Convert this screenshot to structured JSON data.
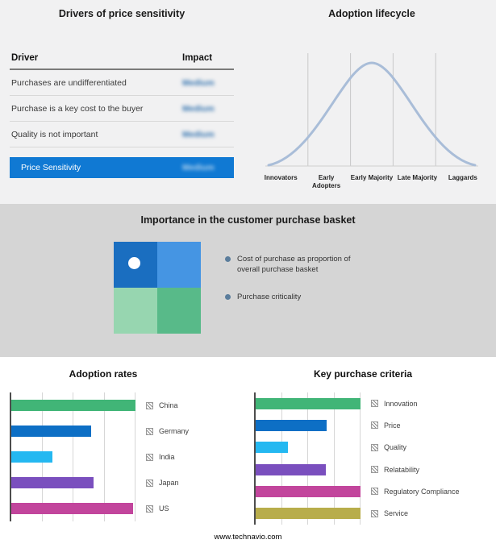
{
  "drivers": {
    "title": "Drivers of price sensitivity",
    "col_driver": "Driver",
    "col_impact": "Impact",
    "rows": [
      {
        "driver": "Purchases are undifferentiated",
        "impact": "Medium"
      },
      {
        "driver": "Purchase is a key cost to the buyer",
        "impact": "Medium"
      },
      {
        "driver": "Quality is not important",
        "impact": "Medium"
      }
    ],
    "highlight": {
      "driver": "Price Sensitivity",
      "impact": "Medium",
      "color": "#1079d3"
    },
    "impact_blurred": true
  },
  "basket": {
    "title": "Importance in the customer purchase basket",
    "legend": [
      "Cost of purchase as proportion of overall purchase basket",
      "Purchase criticality"
    ],
    "quadrant_colors": {
      "top_left": "#1a6ec0",
      "top_right": "#4595e3",
      "bottom_left": "#97d6b0",
      "bottom_right": "#58ba89"
    },
    "band_color": "#d5d5d5"
  },
  "icons": {
    "legend_swatch": "hatched-square",
    "legend_bullet": "filled-circle-bullet",
    "quadrant_marker": "white-dot"
  },
  "footer": {
    "url": "www.technavio.com"
  },
  "chart_data": [
    {
      "type": "line",
      "title": "Adoption lifecycle",
      "x": [
        "Innovators",
        "Early Adopters",
        "Early Majority",
        "Late Majority",
        "Laggards"
      ],
      "values": [
        5,
        45,
        100,
        45,
        5
      ],
      "color": "#a9bdd8",
      "note": "bell-shaped adoption curve, peak over Early Majority, vertical dividers between stages"
    },
    {
      "type": "bar",
      "title": "Adoption rates",
      "orientation": "horizontal",
      "categories": [
        "China",
        "Germany",
        "India",
        "Japan",
        "US"
      ],
      "values": [
        100,
        64,
        33,
        66,
        98
      ],
      "colors": [
        "#41b577",
        "#0d6fc5",
        "#24b8f1",
        "#7a4fbe",
        "#c2459c"
      ],
      "xlim": [
        0,
        100
      ],
      "grid": true,
      "legend_position": "right"
    },
    {
      "type": "bar",
      "title": "Key purchase criteria",
      "orientation": "horizontal",
      "categories": [
        "Innovation",
        "Price",
        "Quality",
        "Relatability",
        "Regulatory Compliance",
        "Service"
      ],
      "values": [
        100,
        68,
        31,
        67,
        100,
        100
      ],
      "colors": [
        "#41b577",
        "#0d6fc5",
        "#24b8f1",
        "#7a4fbe",
        "#c2459c",
        "#b8ad4b"
      ],
      "xlim": [
        0,
        100
      ],
      "grid": true,
      "legend_position": "right"
    }
  ]
}
